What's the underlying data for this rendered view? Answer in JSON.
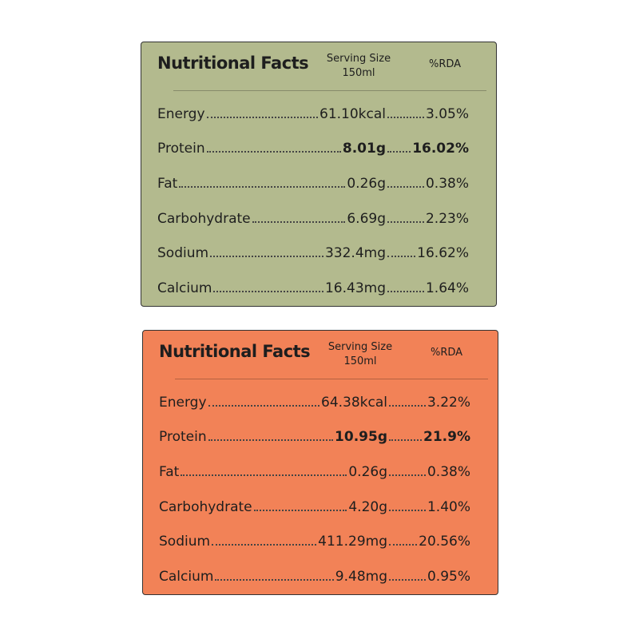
{
  "panels": [
    {
      "color": "#b3ba8e",
      "title": "Nutritional Facts",
      "serving_size": "Serving Size",
      "serving_amount": "150ml",
      "rda_header": "%RDA",
      "rows": [
        {
          "nutrient": "Energy",
          "amount": "61.10kcal",
          "rda": "3.05%"
        },
        {
          "nutrient": "Protein",
          "amount": "8.01g",
          "rda": "16.02%",
          "emphasis": true
        },
        {
          "nutrient": "Fat",
          "amount": "0.26g",
          "rda": "0.38%"
        },
        {
          "nutrient": "Carbohydrate",
          "amount": "6.69g",
          "rda": "2.23%"
        },
        {
          "nutrient": "Sodium",
          "amount": "332.4mg",
          "rda": "16.62%"
        },
        {
          "nutrient": "Calcium",
          "amount": "16.43mg",
          "rda": "1.64%"
        }
      ]
    },
    {
      "color": "#f28257",
      "title": "Nutritional Facts",
      "serving_size": "Serving Size",
      "serving_amount": "150ml",
      "rda_header": "%RDA",
      "rows": [
        {
          "nutrient": "Energy",
          "amount": "64.38kcal",
          "rda": "3.22%"
        },
        {
          "nutrient": "Protein",
          "amount": "10.95g",
          "rda": "21.9%",
          "emphasis": true
        },
        {
          "nutrient": "Fat",
          "amount": "0.26g",
          "rda": "0.38%"
        },
        {
          "nutrient": "Carbohydrate",
          "amount": "4.20g",
          "rda": "1.40%"
        },
        {
          "nutrient": "Sodium",
          "amount": "411.29mg",
          "rda": "20.56%"
        },
        {
          "nutrient": "Calcium",
          "amount": "9.48mg",
          "rda": "0.95%"
        }
      ]
    }
  ]
}
